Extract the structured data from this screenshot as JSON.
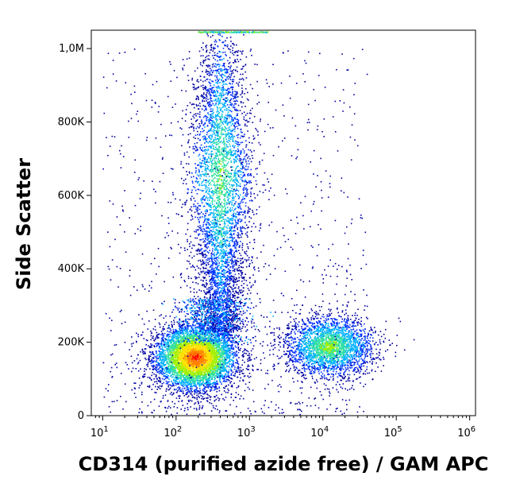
{
  "chart_data": {
    "type": "scatter",
    "subtype": "flow-cytometry density plot",
    "xlabel": "CD314 (purified azide free) / GAM APC",
    "ylabel": "Side Scatter",
    "x_scale": "log",
    "xlim": [
      7,
      1200000
    ],
    "ylim": [
      0,
      1050000
    ],
    "x_ticks": [
      {
        "value": 10,
        "base": "10",
        "exp": "1"
      },
      {
        "value": 100,
        "base": "10",
        "exp": "2"
      },
      {
        "value": 1000,
        "base": "10",
        "exp": "3"
      },
      {
        "value": 10000,
        "base": "10",
        "exp": "4"
      },
      {
        "value": 100000,
        "base": "10",
        "exp": "5"
      },
      {
        "value": 1000000,
        "base": "10",
        "exp": "6"
      }
    ],
    "y_ticks": [
      {
        "value": 0,
        "label": "0"
      },
      {
        "value": 200000,
        "label": "200K"
      },
      {
        "value": 400000,
        "label": "400K"
      },
      {
        "value": 600000,
        "label": "600K"
      },
      {
        "value": 800000,
        "label": "800K"
      },
      {
        "value": 1000000,
        "label": "1,0M"
      }
    ],
    "populations": [
      {
        "name_hidden": "low-SSC negative cluster",
        "x_center": 180,
        "y_center": 160000,
        "x_spread_decades": 0.28,
        "y_spread": 45000,
        "peak_color": "#e00000"
      },
      {
        "name_hidden": "high-SSC negative cluster",
        "x_center": 400,
        "y_center": 650000,
        "x_spread_decades": 0.18,
        "y_spread": 200000,
        "peak_color": "#30c060"
      },
      {
        "name_hidden": "positive cluster",
        "x_center": 12000,
        "y_center": 190000,
        "x_spread_decades": 0.3,
        "y_spread": 40000,
        "peak_color": "#a0e000"
      }
    ],
    "colormap": [
      "#0000a0",
      "#0030ff",
      "#00b0ff",
      "#30e0a0",
      "#a0f000",
      "#ffe000",
      "#ff8000",
      "#ff0000"
    ],
    "grid": false,
    "legend": "none"
  }
}
